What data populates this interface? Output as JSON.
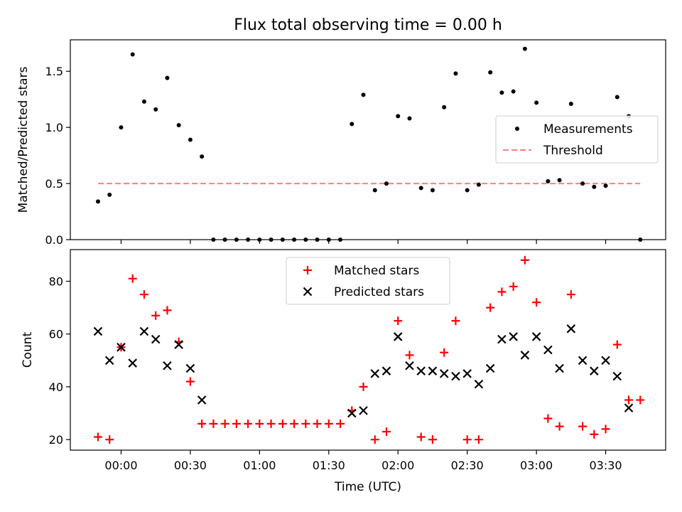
{
  "figure": {
    "title": "Flux total observing time = 0.00 h"
  },
  "chart_data": [
    {
      "type": "scatter",
      "ylabel": "Matched/Predicted stars",
      "ylim": [
        0,
        1.78
      ],
      "yticks": [
        0.0,
        0.5,
        1.0,
        1.5
      ],
      "ytick_labels": [
        "0.0",
        "0.5",
        "1.0",
        "1.5"
      ],
      "legend": {
        "placement": "center-right"
      },
      "series": [
        {
          "name": "Measurements",
          "marker": "dot",
          "color": "#000000",
          "x": [
            "23:50",
            "23:55",
            "00:00",
            "00:05",
            "00:10",
            "00:15",
            "00:20",
            "00:25",
            "00:30",
            "00:35",
            "00:40",
            "00:45",
            "00:50",
            "00:55",
            "01:00",
            "01:05",
            "01:10",
            "01:15",
            "01:20",
            "01:25",
            "01:30",
            "01:35",
            "01:40",
            "01:45",
            "01:50",
            "01:55",
            "02:00",
            "02:05",
            "02:10",
            "02:15",
            "02:20",
            "02:25",
            "02:30",
            "02:35",
            "02:40",
            "02:45",
            "02:50",
            "02:55",
            "03:00",
            "03:05",
            "03:10",
            "03:15",
            "03:20",
            "03:25",
            "03:30",
            "03:35",
            "03:40",
            "03:45"
          ],
          "y": [
            0.34,
            0.4,
            1.0,
            1.65,
            1.23,
            1.16,
            1.44,
            1.02,
            0.89,
            0.74,
            0.0,
            0.0,
            0.0,
            0.0,
            0.0,
            0.0,
            0.0,
            0.0,
            0.0,
            0.0,
            0.0,
            0.0,
            1.03,
            1.29,
            0.44,
            0.5,
            1.1,
            1.08,
            0.46,
            0.44,
            1.18,
            1.48,
            0.44,
            0.49,
            1.49,
            1.31,
            1.32,
            1.7,
            1.22,
            0.52,
            0.53,
            1.21,
            0.5,
            0.47,
            0.48,
            1.27,
            1.1,
            0.0
          ]
        },
        {
          "name": "Threshold",
          "style": "dashed",
          "color": "#ff7f7f",
          "x": [
            "23:50",
            "03:45"
          ],
          "y": [
            0.5,
            0.5
          ]
        }
      ]
    },
    {
      "type": "scatter",
      "xlabel": "Time (UTC)",
      "ylabel": "Count",
      "ylim": [
        16,
        92
      ],
      "yticks": [
        20,
        40,
        60,
        80
      ],
      "ytick_labels": [
        "20",
        "40",
        "60",
        "80"
      ],
      "xtick_labels": [
        "00:00",
        "00:30",
        "01:00",
        "01:30",
        "02:00",
        "02:30",
        "03:00",
        "03:30"
      ],
      "xlim": [
        "23:38",
        "03:56"
      ],
      "legend": {
        "placement": "top-center"
      },
      "series": [
        {
          "name": "Matched stars",
          "marker": "plus",
          "color": "#ff0000",
          "x": [
            "23:50",
            "23:55",
            "00:00",
            "00:05",
            "00:10",
            "00:15",
            "00:20",
            "00:25",
            "00:30",
            "00:35",
            "00:40",
            "00:45",
            "00:50",
            "00:55",
            "01:00",
            "01:05",
            "01:10",
            "01:15",
            "01:20",
            "01:25",
            "01:30",
            "01:35",
            "01:40",
            "01:45",
            "01:50",
            "01:55",
            "02:00",
            "02:05",
            "02:10",
            "02:15",
            "02:20",
            "02:25",
            "02:30",
            "02:35",
            "02:40",
            "02:45",
            "02:50",
            "02:55",
            "03:00",
            "03:05",
            "03:10",
            "03:15",
            "03:20",
            "03:25",
            "03:30",
            "03:35",
            "03:40",
            "03:45"
          ],
          "y": [
            21,
            20,
            55,
            81,
            75,
            67,
            69,
            57,
            42,
            26,
            26,
            26,
            26,
            26,
            26,
            26,
            26,
            26,
            26,
            26,
            26,
            26,
            31,
            40,
            20,
            23,
            65,
            52,
            21,
            20,
            53,
            65,
            20,
            20,
            70,
            76,
            78,
            88,
            72,
            28,
            25,
            75,
            25,
            22,
            24,
            56,
            35,
            35
          ]
        },
        {
          "name": "Predicted stars",
          "marker": "x",
          "color": "#000000",
          "x": [
            "23:50",
            "23:55",
            "00:00",
            "00:05",
            "00:10",
            "00:15",
            "00:20",
            "00:25",
            "00:30",
            "00:35",
            "01:40",
            "01:45",
            "01:50",
            "01:55",
            "02:00",
            "02:05",
            "02:10",
            "02:15",
            "02:20",
            "02:25",
            "02:30",
            "02:35",
            "02:40",
            "02:45",
            "02:50",
            "02:55",
            "03:00",
            "03:05",
            "03:10",
            "03:15",
            "03:20",
            "03:25",
            "03:30",
            "03:35",
            "03:40"
          ],
          "y": [
            61,
            50,
            55,
            49,
            61,
            58,
            48,
            56,
            47,
            35,
            30,
            31,
            45,
            46,
            59,
            48,
            46,
            46,
            45,
            44,
            45,
            41,
            47,
            58,
            59,
            52,
            59,
            54,
            47,
            62,
            50,
            46,
            50,
            44,
            32
          ]
        }
      ]
    }
  ]
}
